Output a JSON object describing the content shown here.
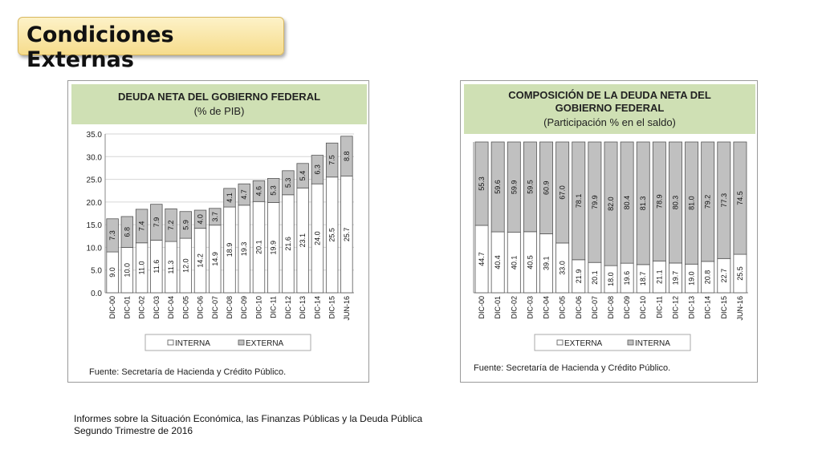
{
  "slide": {
    "title": "Condiciones Externas"
  },
  "footer": {
    "line1": "Informes sobre la Situación Económica, las Finanzas Públicas y la Deuda Pública",
    "line2": "Segundo Trimestre de 2016"
  },
  "chart_data": [
    {
      "type": "bar",
      "stacked": true,
      "title": "DEUDA NETA DEL GOBIERNO FEDERAL",
      "subtitle": "(% de PIB)",
      "source": "Fuente: Secretaría de Hacienda y Crédito Público.",
      "categories": [
        "DIC-00",
        "DIC-01",
        "DIC-02",
        "DIC-03",
        "DIC-04",
        "DIC-05",
        "DIC-06",
        "DIC-07",
        "DIC-08",
        "DIC-09",
        "DIC-10",
        "DIC-11",
        "DIC-12",
        "DIC-13",
        "DIC-14",
        "DIC-15",
        "JUN-16"
      ],
      "series": [
        {
          "name": "INTERNA",
          "color": "#ffffff",
          "values": [
            9.0,
            10.0,
            11.0,
            11.6,
            11.3,
            12.0,
            14.2,
            14.9,
            18.9,
            19.3,
            20.1,
            19.9,
            21.6,
            23.1,
            24.0,
            25.5,
            25.7
          ]
        },
        {
          "name": "EXTERNA",
          "color": "#c0c0c0",
          "values": [
            7.3,
            6.8,
            7.4,
            7.9,
            7.2,
            5.9,
            4.0,
            3.7,
            4.1,
            4.7,
            4.6,
            5.3,
            5.3,
            5.4,
            6.3,
            7.5,
            8.8
          ]
        }
      ],
      "ylim": [
        0,
        35
      ],
      "yticks": [
        "0.0",
        "5.0",
        "10.0",
        "15.0",
        "20.0",
        "25.0",
        "30.0",
        "35.0"
      ],
      "grid": true,
      "legend": "bottom"
    },
    {
      "type": "bar",
      "stacked": true,
      "percent": true,
      "title_lines": [
        "COMPOSICIÓN DE LA DEUDA NETA DEL",
        "GOBIERNO FEDERAL"
      ],
      "subtitle": "(Participación % en el saldo)",
      "source": "Fuente: Secretaría de Hacienda y Crédito Público.",
      "categories": [
        "DIC-00",
        "DIC-01",
        "DIC-02",
        "DIC-03",
        "DIC-04",
        "DIC-05",
        "DIC-06",
        "DIC-07",
        "DIC-08",
        "DIC-09",
        "DIC-10",
        "DIC-11",
        "DIC-12",
        "DIC-13",
        "DIC-14",
        "DIC-15",
        "JUN-16"
      ],
      "series": [
        {
          "name": "EXTERNA",
          "color": "#ffffff",
          "values": [
            44.7,
            40.4,
            40.1,
            40.5,
            39.1,
            33.0,
            21.9,
            20.1,
            18.0,
            19.6,
            18.7,
            21.1,
            19.7,
            19.0,
            20.8,
            22.7,
            25.5
          ]
        },
        {
          "name": "INTERNA",
          "color": "#c0c0c0",
          "values": [
            55.3,
            59.6,
            59.9,
            59.5,
            60.9,
            67.0,
            78.1,
            79.9,
            82.0,
            80.4,
            81.3,
            78.9,
            80.3,
            81.0,
            79.2,
            77.3,
            74.5
          ]
        }
      ],
      "ylim": [
        0,
        100
      ],
      "legend": "bottom"
    }
  ]
}
